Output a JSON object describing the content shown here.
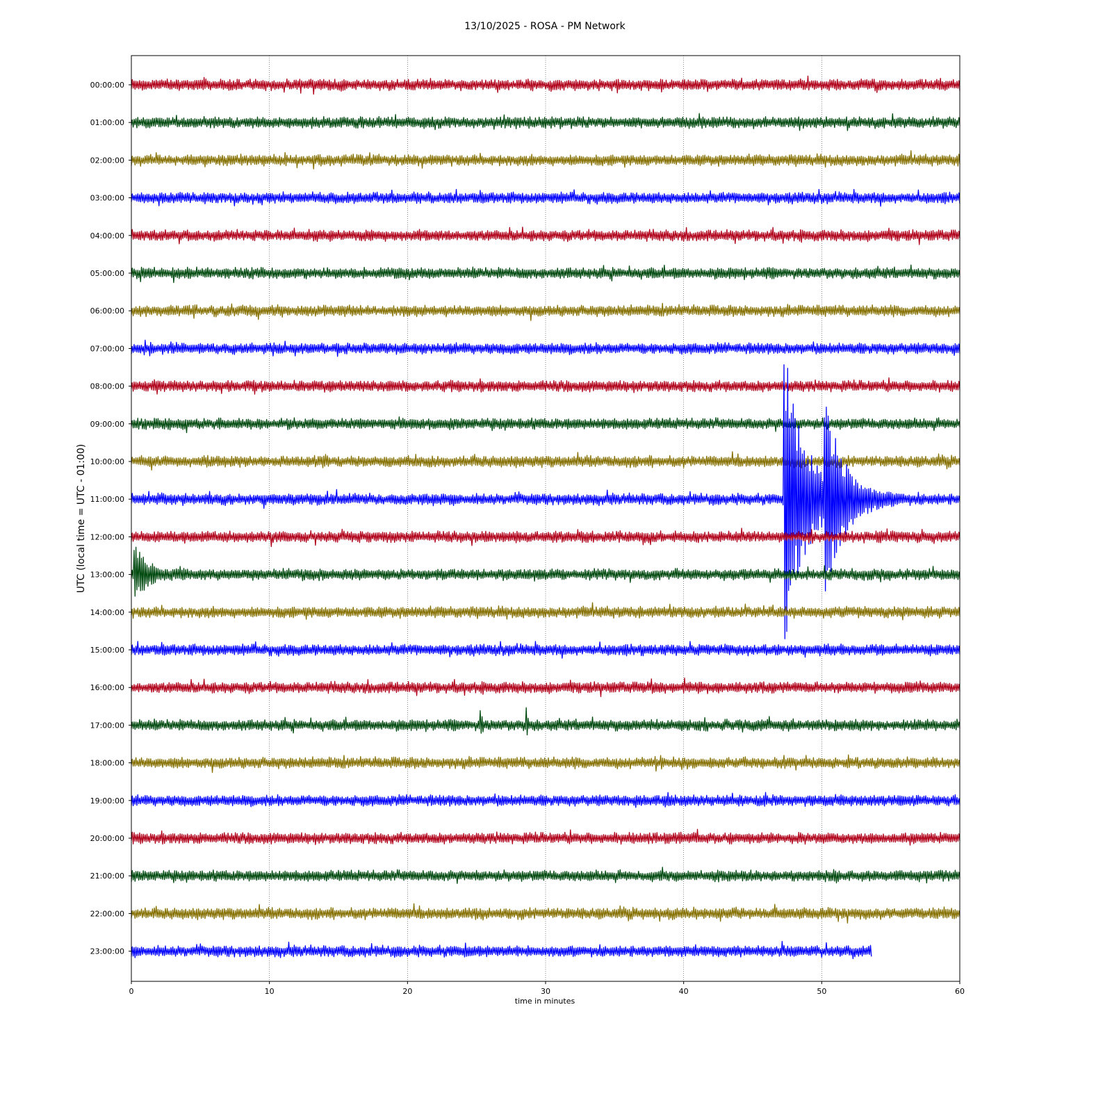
{
  "chart_data": {
    "type": "line",
    "title": "13/10/2025 - ROSA - PM Network",
    "xlabel": "time in minutes",
    "ylabel": "UTC (local time = UTC - 01:00)",
    "xlim": [
      0,
      60
    ],
    "xticks": [
      0,
      10,
      20,
      30,
      40,
      50,
      60
    ],
    "grid": "vertical dotted at x ticks",
    "legend": "none",
    "colors": [
      "#b0001a",
      "#004a10",
      "#857000",
      "#0000ff"
    ],
    "rows": [
      {
        "label": "00:00:00",
        "end_min": 60,
        "events": []
      },
      {
        "label": "01:00:00",
        "end_min": 60,
        "events": []
      },
      {
        "label": "02:00:00",
        "end_min": 60,
        "events": []
      },
      {
        "label": "03:00:00",
        "end_min": 60,
        "events": []
      },
      {
        "label": "04:00:00",
        "end_min": 60,
        "events": []
      },
      {
        "label": "05:00:00",
        "end_min": 60,
        "events": []
      },
      {
        "label": "06:00:00",
        "end_min": 60,
        "events": []
      },
      {
        "label": "07:00:00",
        "end_min": 60,
        "events": []
      },
      {
        "label": "08:00:00",
        "end_min": 60,
        "events": []
      },
      {
        "label": "09:00:00",
        "end_min": 60,
        "events": []
      },
      {
        "label": "10:00:00",
        "end_min": 60,
        "events": []
      },
      {
        "label": "11:00:00",
        "end_min": 60,
        "events": [
          {
            "t": 47.3,
            "amp": 4.0,
            "decay": 1.5
          },
          {
            "t": 50.2,
            "amp": 2.5,
            "decay": 1.2
          }
        ]
      },
      {
        "label": "12:00:00",
        "end_min": 60,
        "events": []
      },
      {
        "label": "13:00:00",
        "end_min": 60,
        "events": [
          {
            "t": 0.2,
            "amp": 0.8,
            "decay": 0.8
          }
        ]
      },
      {
        "label": "14:00:00",
        "end_min": 60,
        "events": []
      },
      {
        "label": "15:00:00",
        "end_min": 60,
        "events": []
      },
      {
        "label": "16:00:00",
        "end_min": 60,
        "events": []
      },
      {
        "label": "17:00:00",
        "end_min": 60,
        "events": [
          {
            "t": 25.3,
            "amp": 0.35,
            "decay": 0.1
          },
          {
            "t": 28.6,
            "amp": 0.5,
            "decay": 0.1
          }
        ]
      },
      {
        "label": "18:00:00",
        "end_min": 60,
        "events": []
      },
      {
        "label": "19:00:00",
        "end_min": 60,
        "events": []
      },
      {
        "label": "20:00:00",
        "end_min": 60,
        "events": []
      },
      {
        "label": "21:00:00",
        "end_min": 60,
        "events": []
      },
      {
        "label": "22:00:00",
        "end_min": 60,
        "events": []
      },
      {
        "label": "23:00:00",
        "end_min": 53.6,
        "events": []
      }
    ]
  }
}
